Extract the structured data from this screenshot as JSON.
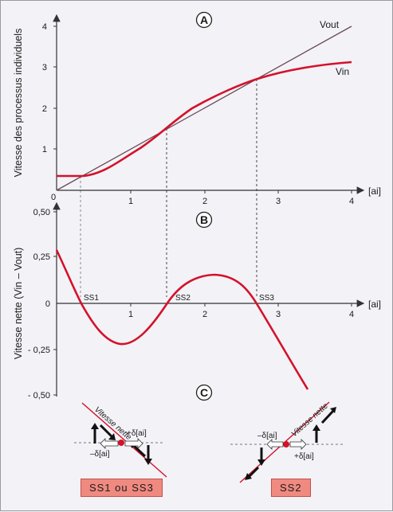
{
  "panelA": {
    "badge": "A",
    "ylabel": "Vitesse des processus individuels",
    "xlabel": "[ai]",
    "yticks": [
      "4",
      "3",
      "2",
      "1"
    ],
    "xticks": [
      "1",
      "2",
      "3",
      "4"
    ],
    "origin": "0",
    "vout_label": "Vout",
    "vin_label": "Vin"
  },
  "panelB": {
    "badge": "B",
    "ylabel": "Vitesse nette (Vin – Vout)",
    "xlabel": "[ai]",
    "yticks": [
      "0,50",
      "0,25",
      "0",
      "- 0,25",
      "- 0,50"
    ],
    "xticks": [
      "1",
      "2",
      "3",
      "4"
    ],
    "ss1": "SS1",
    "ss2": "SS2",
    "ss3": "SS3"
  },
  "panelC": {
    "badge": "C",
    "left_line_label": "Vitesse nette",
    "right_line_label": "Vitesse nette",
    "plus_delta": "+δ[ai]",
    "minus_delta": "–δ[ai]",
    "left_box": "SS1 ou SS3",
    "right_box": "SS2"
  },
  "colors": {
    "curve": "#d3122a",
    "line": "#6b4a56",
    "box": "#f08a80"
  },
  "chart_data": [
    {
      "type": "line",
      "xlim": [
        0,
        4
      ],
      "ylim": [
        0,
        4
      ],
      "series": [
        {
          "name": "Vout",
          "x": [
            0,
            4
          ],
          "y": [
            0,
            4
          ]
        },
        {
          "name": "Vin",
          "x": [
            0,
            0.35,
            0.6,
            1.0,
            1.5,
            2.0,
            2.7,
            3.3,
            4.0
          ],
          "y": [
            0.33,
            0.33,
            0.45,
            0.9,
            1.5,
            2.05,
            2.7,
            2.95,
            3.08
          ]
        }
      ]
    },
    {
      "type": "line",
      "xlim": [
        0,
        4
      ],
      "ylim": [
        -0.5,
        0.5
      ],
      "series": [
        {
          "name": "Vin – Vout",
          "x": [
            0,
            0.35,
            0.7,
            0.95,
            1.2,
            1.5,
            1.8,
            2.1,
            2.4,
            2.7,
            3.0,
            3.4
          ],
          "y": [
            0.29,
            0.0,
            -0.15,
            -0.21,
            -0.17,
            0.0,
            0.13,
            0.155,
            0.11,
            0.0,
            -0.2,
            -0.45
          ]
        }
      ]
    }
  ]
}
